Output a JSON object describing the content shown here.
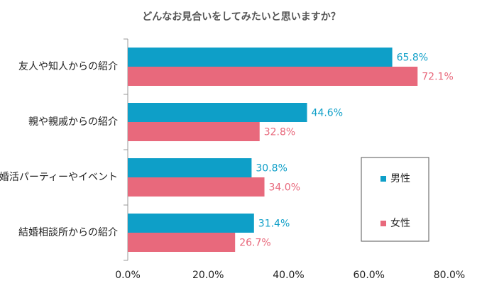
{
  "chart_data": {
    "type": "bar",
    "orientation": "horizontal",
    "title": "どんなお見合いをしてみたいと思いますか？",
    "categories": [
      "友人や知人からの紹介",
      "親や親戚からの紹介",
      "婚活パーティーやイベント",
      "結婚相談所からの紹介"
    ],
    "series": [
      {
        "name": "男性",
        "color": "#0e9fc8",
        "values": [
          65.8,
          44.6,
          30.8,
          31.4
        ],
        "value_labels": [
          "65.8%",
          "44.6%",
          "30.8%",
          "31.4%"
        ]
      },
      {
        "name": "女性",
        "color": "#e8697c",
        "values": [
          72.1,
          32.8,
          34.0,
          26.7
        ],
        "value_labels": [
          "72.1%",
          "32.8%",
          "34.0%",
          "26.7%"
        ]
      }
    ],
    "xlim": [
      0,
      80
    ],
    "xticks": [
      {
        "value": 0,
        "label": "0.0%"
      },
      {
        "value": 20,
        "label": "20.0%"
      },
      {
        "value": 40,
        "label": "40.0%"
      },
      {
        "value": 60,
        "label": "60.0%"
      },
      {
        "value": 80,
        "label": "80.0%"
      }
    ],
    "grid": false,
    "legend": "right"
  }
}
